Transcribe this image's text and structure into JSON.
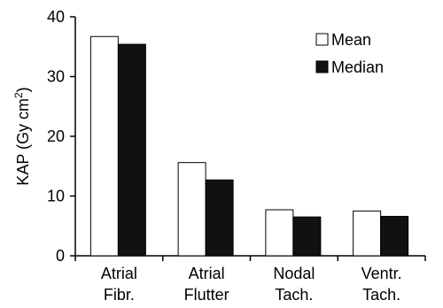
{
  "chart_data": {
    "type": "bar",
    "categories": [
      [
        "Atrial",
        "Fibr."
      ],
      [
        "Atrial",
        "Flutter"
      ],
      [
        "Nodal",
        "Tach."
      ],
      [
        "Ventr.",
        "Tach."
      ]
    ],
    "series": [
      {
        "name": "Mean",
        "values": [
          36.7,
          15.6,
          7.7,
          7.5
        ],
        "color": "#ffffff"
      },
      {
        "name": "Median",
        "values": [
          35.4,
          12.7,
          6.5,
          6.6
        ],
        "color": "#111111"
      }
    ],
    "ylabel": "KAP (Gy cm",
    "ylabel_sup": "2",
    "ylabel_close": ")",
    "ylim": [
      0,
      40
    ],
    "yticks": [
      0,
      10,
      20,
      30,
      40
    ],
    "grid": false,
    "legend_position": "top-right"
  }
}
